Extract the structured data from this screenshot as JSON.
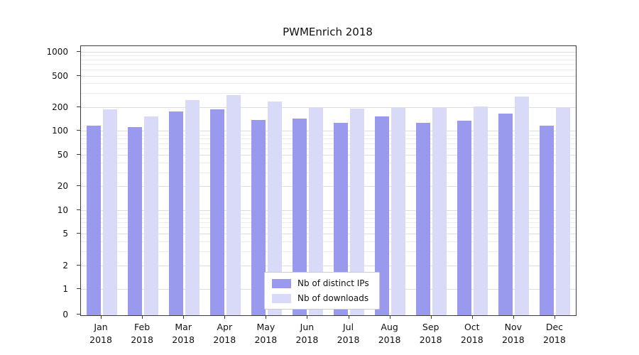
{
  "chart_data": {
    "type": "bar",
    "title": "PWMEnrich 2018",
    "categories": [
      "Jan",
      "Feb",
      "Mar",
      "Apr",
      "May",
      "Jun",
      "Jul",
      "Aug",
      "Sep",
      "Oct",
      "Nov",
      "Dec"
    ],
    "year": "2018",
    "series": [
      {
        "name": "Nb of distinct IPs",
        "color": "#9999ee",
        "values": [
          120,
          115,
          180,
          190,
          140,
          145,
          130,
          155,
          130,
          138,
          170,
          120
        ]
      },
      {
        "name": "Nb of downloads",
        "color": "#d9d9f8",
        "values": [
          190,
          155,
          250,
          290,
          240,
          205,
          195,
          205,
          198,
          210,
          280,
          198
        ]
      }
    ],
    "yticks": [
      0,
      1,
      2,
      5,
      10,
      20,
      50,
      100,
      200,
      500,
      1000
    ],
    "yscale": "log",
    "ylim": [
      0,
      1200
    ],
    "xlabel": "",
    "ylabel": "",
    "grid": true,
    "legend_position": "lower center"
  }
}
